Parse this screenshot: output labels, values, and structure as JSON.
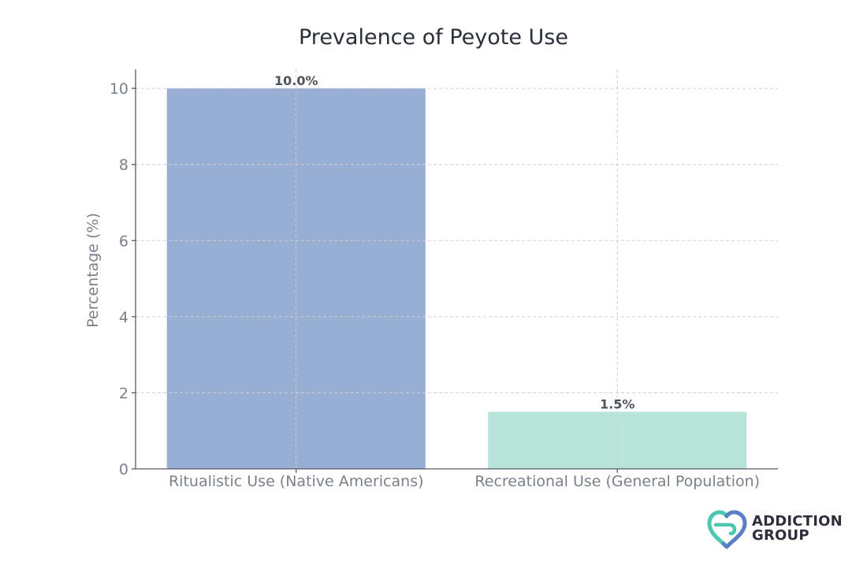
{
  "chart_data": {
    "type": "bar",
    "title": "Prevalence of Peyote Use",
    "xlabel": "",
    "ylabel": "Percentage (%)",
    "categories": [
      "Ritualistic Use (Native Americans)",
      "Recreational Use (General Population)"
    ],
    "values": [
      10.0,
      1.5
    ],
    "data_labels": [
      "10.0%",
      "1.5%"
    ],
    "bar_colors": [
      "#98aed2",
      "#b9e4da"
    ],
    "ylim": [
      0,
      10.5
    ],
    "yticks": [
      0,
      2,
      4,
      6,
      8,
      10
    ],
    "grid": true,
    "legend": "none"
  },
  "branding": {
    "line1": "ADDICTION",
    "line2": "GROUP",
    "icon": "heart-location-pin-icon",
    "colors": [
      "#4cc7b0",
      "#5b7fc4"
    ]
  }
}
